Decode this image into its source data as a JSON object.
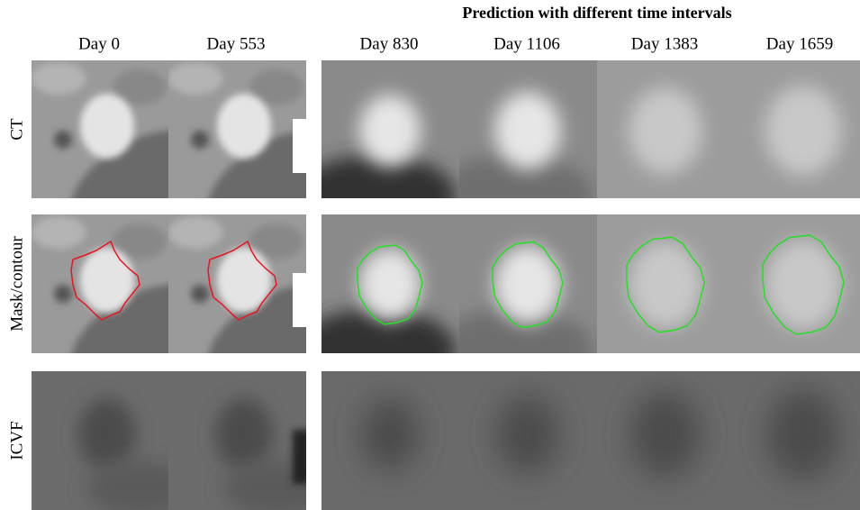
{
  "header": {
    "title": "Prediction with different time intervals"
  },
  "columns": [
    "Day 0",
    "Day 553",
    "Day 830",
    "Day 1106",
    "Day 1383",
    "Day 1659"
  ],
  "rows": [
    "CT",
    "Mask/contour",
    "ICVF"
  ]
}
